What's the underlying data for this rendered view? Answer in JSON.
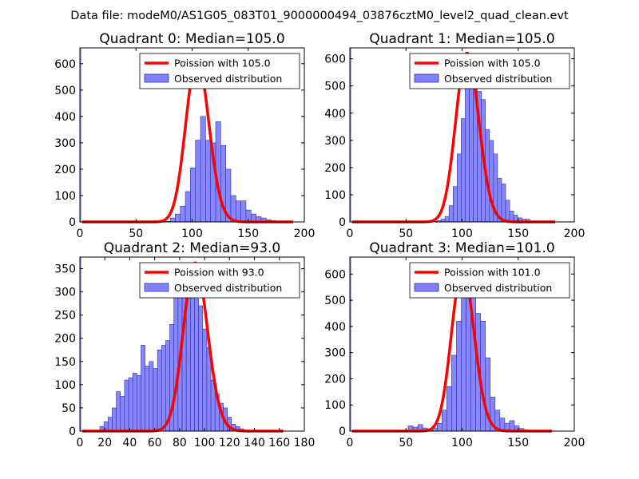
{
  "figure_title": "Data file: modeM0/AS1G05_083T01_9000000494_03876cztM0_level2_quad_clean.evt",
  "colors": {
    "bars": "#8080ff",
    "bar_edge": "#3030a0",
    "fit": "#ff0000",
    "axes": "#000000"
  },
  "chart_data": [
    {
      "type": "bar",
      "title": "Quadrant 0: Median=105.0",
      "xlim": [
        0,
        200
      ],
      "ylim": [
        0,
        660
      ],
      "xticks": [
        0,
        50,
        100,
        150,
        200
      ],
      "yticks": [
        0,
        100,
        200,
        300,
        400,
        500,
        600
      ],
      "legend": {
        "placement": "top-right",
        "entries": [
          "Poission with 105.0",
          "Observed distribution"
        ]
      },
      "zero_bin": {
        "x0": 0,
        "x1": 1.2,
        "y": 660
      },
      "bins": {
        "start": 76,
        "width": 4.5,
        "values": [
          2,
          15,
          30,
          60,
          115,
          205,
          310,
          400,
          310,
          300,
          380,
          290,
          200,
          100,
          80,
          80,
          45,
          30,
          20,
          15,
          8,
          5,
          3,
          2,
          1
        ]
      },
      "fit": {
        "mean": 105.0,
        "peak": 620,
        "xmin": 2,
        "xmax": 190
      }
    },
    {
      "type": "bar",
      "title": "Quadrant 1: Median=105.0",
      "xlim": [
        0,
        200
      ],
      "ylim": [
        0,
        640
      ],
      "xticks": [
        0,
        50,
        100,
        150,
        200
      ],
      "yticks": [
        0,
        100,
        200,
        300,
        400,
        500,
        600
      ],
      "legend": {
        "placement": "top-right",
        "entries": [
          "Poission with 105.0",
          "Observed distribution"
        ]
      },
      "zero_bin": {
        "x0": 0,
        "x1": 1.2,
        "y": 640
      },
      "bins": {
        "start": 74,
        "width": 3.6,
        "values": [
          2,
          5,
          10,
          20,
          60,
          130,
          250,
          380,
          560,
          600,
          500,
          480,
          450,
          340,
          300,
          250,
          160,
          140,
          80,
          40,
          25,
          15,
          10,
          10,
          3,
          2
        ]
      },
      "fit": {
        "mean": 105.0,
        "peak": 620,
        "xmin": 2,
        "xmax": 183
      }
    },
    {
      "type": "bar",
      "title": "Quadrant 2: Median=93.0",
      "xlim": [
        0,
        180
      ],
      "ylim": [
        0,
        375
      ],
      "xticks": [
        0,
        20,
        40,
        60,
        80,
        100,
        120,
        140,
        160,
        180
      ],
      "yticks": [
        0,
        50,
        100,
        150,
        200,
        250,
        300,
        350
      ],
      "legend": {
        "placement": "top-right",
        "entries": [
          "Poission with 93.0",
          "Observed distribution"
        ]
      },
      "zero_bin": {
        "x0": 0,
        "x1": 1.1,
        "y": 375
      },
      "bins": {
        "start": 16,
        "width": 3.3,
        "values": [
          10,
          20,
          30,
          50,
          85,
          75,
          110,
          115,
          125,
          120,
          185,
          140,
          150,
          135,
          175,
          185,
          195,
          230,
          310,
          350,
          330,
          350,
          320,
          285,
          270,
          220,
          180,
          110,
          80,
          60,
          50,
          30,
          15,
          10,
          5,
          2
        ]
      },
      "fit": {
        "mean": 93.0,
        "peak": 362,
        "xmin": 2,
        "xmax": 163
      }
    },
    {
      "type": "bar",
      "title": "Quadrant 3: Median=101.0",
      "xlim": [
        0,
        200
      ],
      "ylim": [
        0,
        665
      ],
      "xticks": [
        0,
        50,
        100,
        150,
        200
      ],
      "yticks": [
        0,
        100,
        200,
        300,
        400,
        500,
        600
      ],
      "legend": {
        "placement": "top-right",
        "entries": [
          "Poission with 101.0",
          "Observed distribution"
        ]
      },
      "zero_bin": {
        "x0": 0,
        "x1": 1.2,
        "y": 665
      },
      "bins": {
        "start": 52,
        "width": 4.3,
        "values": [
          20,
          15,
          25,
          12,
          8,
          12,
          30,
          80,
          170,
          290,
          420,
          560,
          600,
          560,
          450,
          420,
          280,
          130,
          80,
          50,
          30,
          40,
          20,
          10,
          5,
          3
        ]
      },
      "fit": {
        "mean": 101.0,
        "peak": 620,
        "xmin": 2,
        "xmax": 180
      }
    }
  ]
}
